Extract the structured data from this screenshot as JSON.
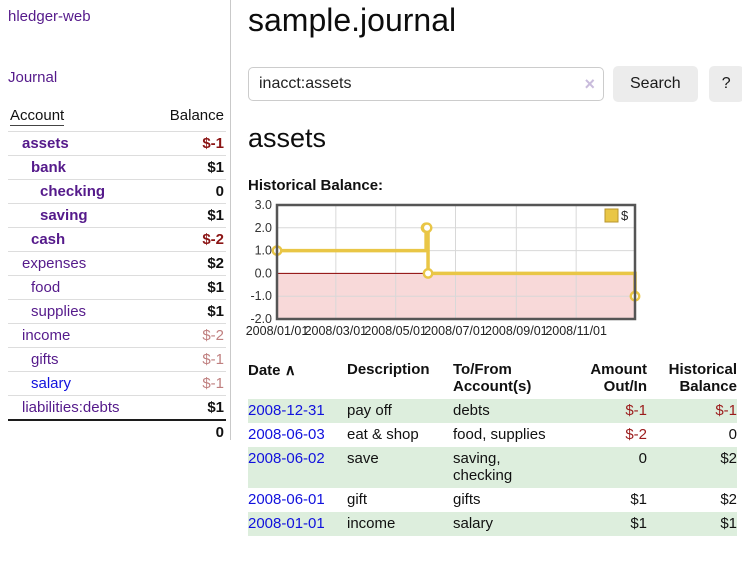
{
  "colors": {
    "link_purple": "#551a8b",
    "link_blue": "#1111dd",
    "negative_strong": "#8b1414",
    "negative_soft": "#c08080",
    "negative_register": "#9b1b1b",
    "row_shade_green": "#ddeedd",
    "chart_line_gold": "#e9c646",
    "chart_negative_fill": "#f8d9d9",
    "chart_zero_line": "#8b0000",
    "button_bg": "#ececec"
  },
  "sidebar": {
    "app_title": "hledger-web",
    "journal_link": "Journal",
    "account_header": "Account",
    "balance_header": "Balance",
    "accounts": [
      {
        "name": "assets",
        "indent": 0,
        "emphasis": true,
        "link_color": "purple",
        "balance": "$-1",
        "balance_class": "neg-strong"
      },
      {
        "name": "bank",
        "indent": 1,
        "emphasis": true,
        "link_color": "purple",
        "balance": "$1",
        "balance_class": "pos"
      },
      {
        "name": "checking",
        "indent": 2,
        "emphasis": true,
        "link_color": "purple",
        "balance": "0",
        "balance_class": "pos"
      },
      {
        "name": "saving",
        "indent": 2,
        "emphasis": true,
        "link_color": "purple",
        "balance": "$1",
        "balance_class": "pos"
      },
      {
        "name": "cash",
        "indent": 1,
        "emphasis": true,
        "link_color": "purple",
        "balance": "$-2",
        "balance_class": "neg-strong"
      },
      {
        "name": "expenses",
        "indent": 0,
        "emphasis": false,
        "link_color": "purple",
        "balance": "$2",
        "balance_class": "pos"
      },
      {
        "name": "food",
        "indent": 1,
        "emphasis": false,
        "link_color": "purple",
        "balance": "$1",
        "balance_class": "pos"
      },
      {
        "name": "supplies",
        "indent": 1,
        "emphasis": false,
        "link_color": "purple",
        "balance": "$1",
        "balance_class": "pos"
      },
      {
        "name": "income",
        "indent": 0,
        "emphasis": false,
        "link_color": "purple",
        "balance": "$-2",
        "balance_class": "neg-soft"
      },
      {
        "name": "gifts",
        "indent": 1,
        "emphasis": false,
        "link_color": "purple",
        "balance": "$-1",
        "balance_class": "neg-soft"
      },
      {
        "name": "salary",
        "indent": 1,
        "emphasis": false,
        "link_color": "blue",
        "balance": "$-1",
        "balance_class": "neg-soft"
      },
      {
        "name": "liabilities:debts",
        "indent": 0,
        "emphasis": false,
        "link_color": "purple",
        "balance": "$1",
        "balance_class": "pos"
      }
    ],
    "total": "0"
  },
  "main": {
    "title": "sample.journal",
    "search": {
      "value": "inacct:assets",
      "placeholder": "",
      "clear_icon": "×",
      "button_label": "Search",
      "help_label": "?"
    },
    "account_heading": "assets",
    "chart_label": "Historical Balance:"
  },
  "chart_data": {
    "type": "line",
    "subtype": "step",
    "title": "Historical Balance:",
    "legend": "$",
    "legend_position": "top-right",
    "grid": true,
    "ylim": [
      -2.0,
      3.0
    ],
    "y_ticks": [
      "3.0",
      "2.0",
      "1.0",
      "0.0",
      "-1.0",
      "-2.0"
    ],
    "y_tick_values": [
      3,
      2,
      1,
      0,
      -1,
      -2
    ],
    "xlim": [
      "2008-01-01",
      "2008-12-31"
    ],
    "x_ticks": [
      {
        "date": "2008-01-01",
        "label": "2008/01/01"
      },
      {
        "date": "2008-03-01",
        "label": "2008/03/01"
      },
      {
        "date": "2008-05-01",
        "label": "2008/05/01"
      },
      {
        "date": "2008-07-01",
        "label": "2008/07/01"
      },
      {
        "date": "2008-09-01",
        "label": "2008/09/01"
      },
      {
        "date": "2008-11-01",
        "label": "2008/11/01"
      }
    ],
    "series": [
      {
        "name": "$",
        "color": "#e9c646",
        "points": [
          {
            "date": "2008-01-01",
            "value": 1
          },
          {
            "date": "2008-06-01",
            "value": 2
          },
          {
            "date": "2008-06-02",
            "value": 2
          },
          {
            "date": "2008-06-03",
            "value": 0
          },
          {
            "date": "2008-12-31",
            "value": -1
          }
        ]
      }
    ]
  },
  "register": {
    "headers": {
      "date": "Date",
      "sort_icon": "∧",
      "description": "Description",
      "accounts": "To/From Account(s)",
      "amount": "Amount Out/In",
      "balance": "Historical Balance"
    },
    "rows": [
      {
        "date": "2008-12-31",
        "description": "pay off",
        "accounts": "debts",
        "amount": "$-1",
        "amount_neg": true,
        "balance": "$-1",
        "balance_neg": true,
        "shaded": true
      },
      {
        "date": "2008-06-03",
        "description": "eat & shop",
        "accounts": "food, supplies",
        "amount": "$-2",
        "amount_neg": true,
        "balance": "0",
        "balance_neg": false,
        "shaded": false
      },
      {
        "date": "2008-06-02",
        "description": "save",
        "accounts": "saving, checking",
        "amount": "0",
        "amount_neg": false,
        "balance": "$2",
        "balance_neg": false,
        "shaded": true
      },
      {
        "date": "2008-06-01",
        "description": "gift",
        "accounts": "gifts",
        "amount": "$1",
        "amount_neg": false,
        "balance": "$2",
        "balance_neg": false,
        "shaded": false
      },
      {
        "date": "2008-01-01",
        "description": "income",
        "accounts": "salary",
        "amount": "$1",
        "amount_neg": false,
        "balance": "$1",
        "balance_neg": false,
        "shaded": true
      }
    ]
  }
}
